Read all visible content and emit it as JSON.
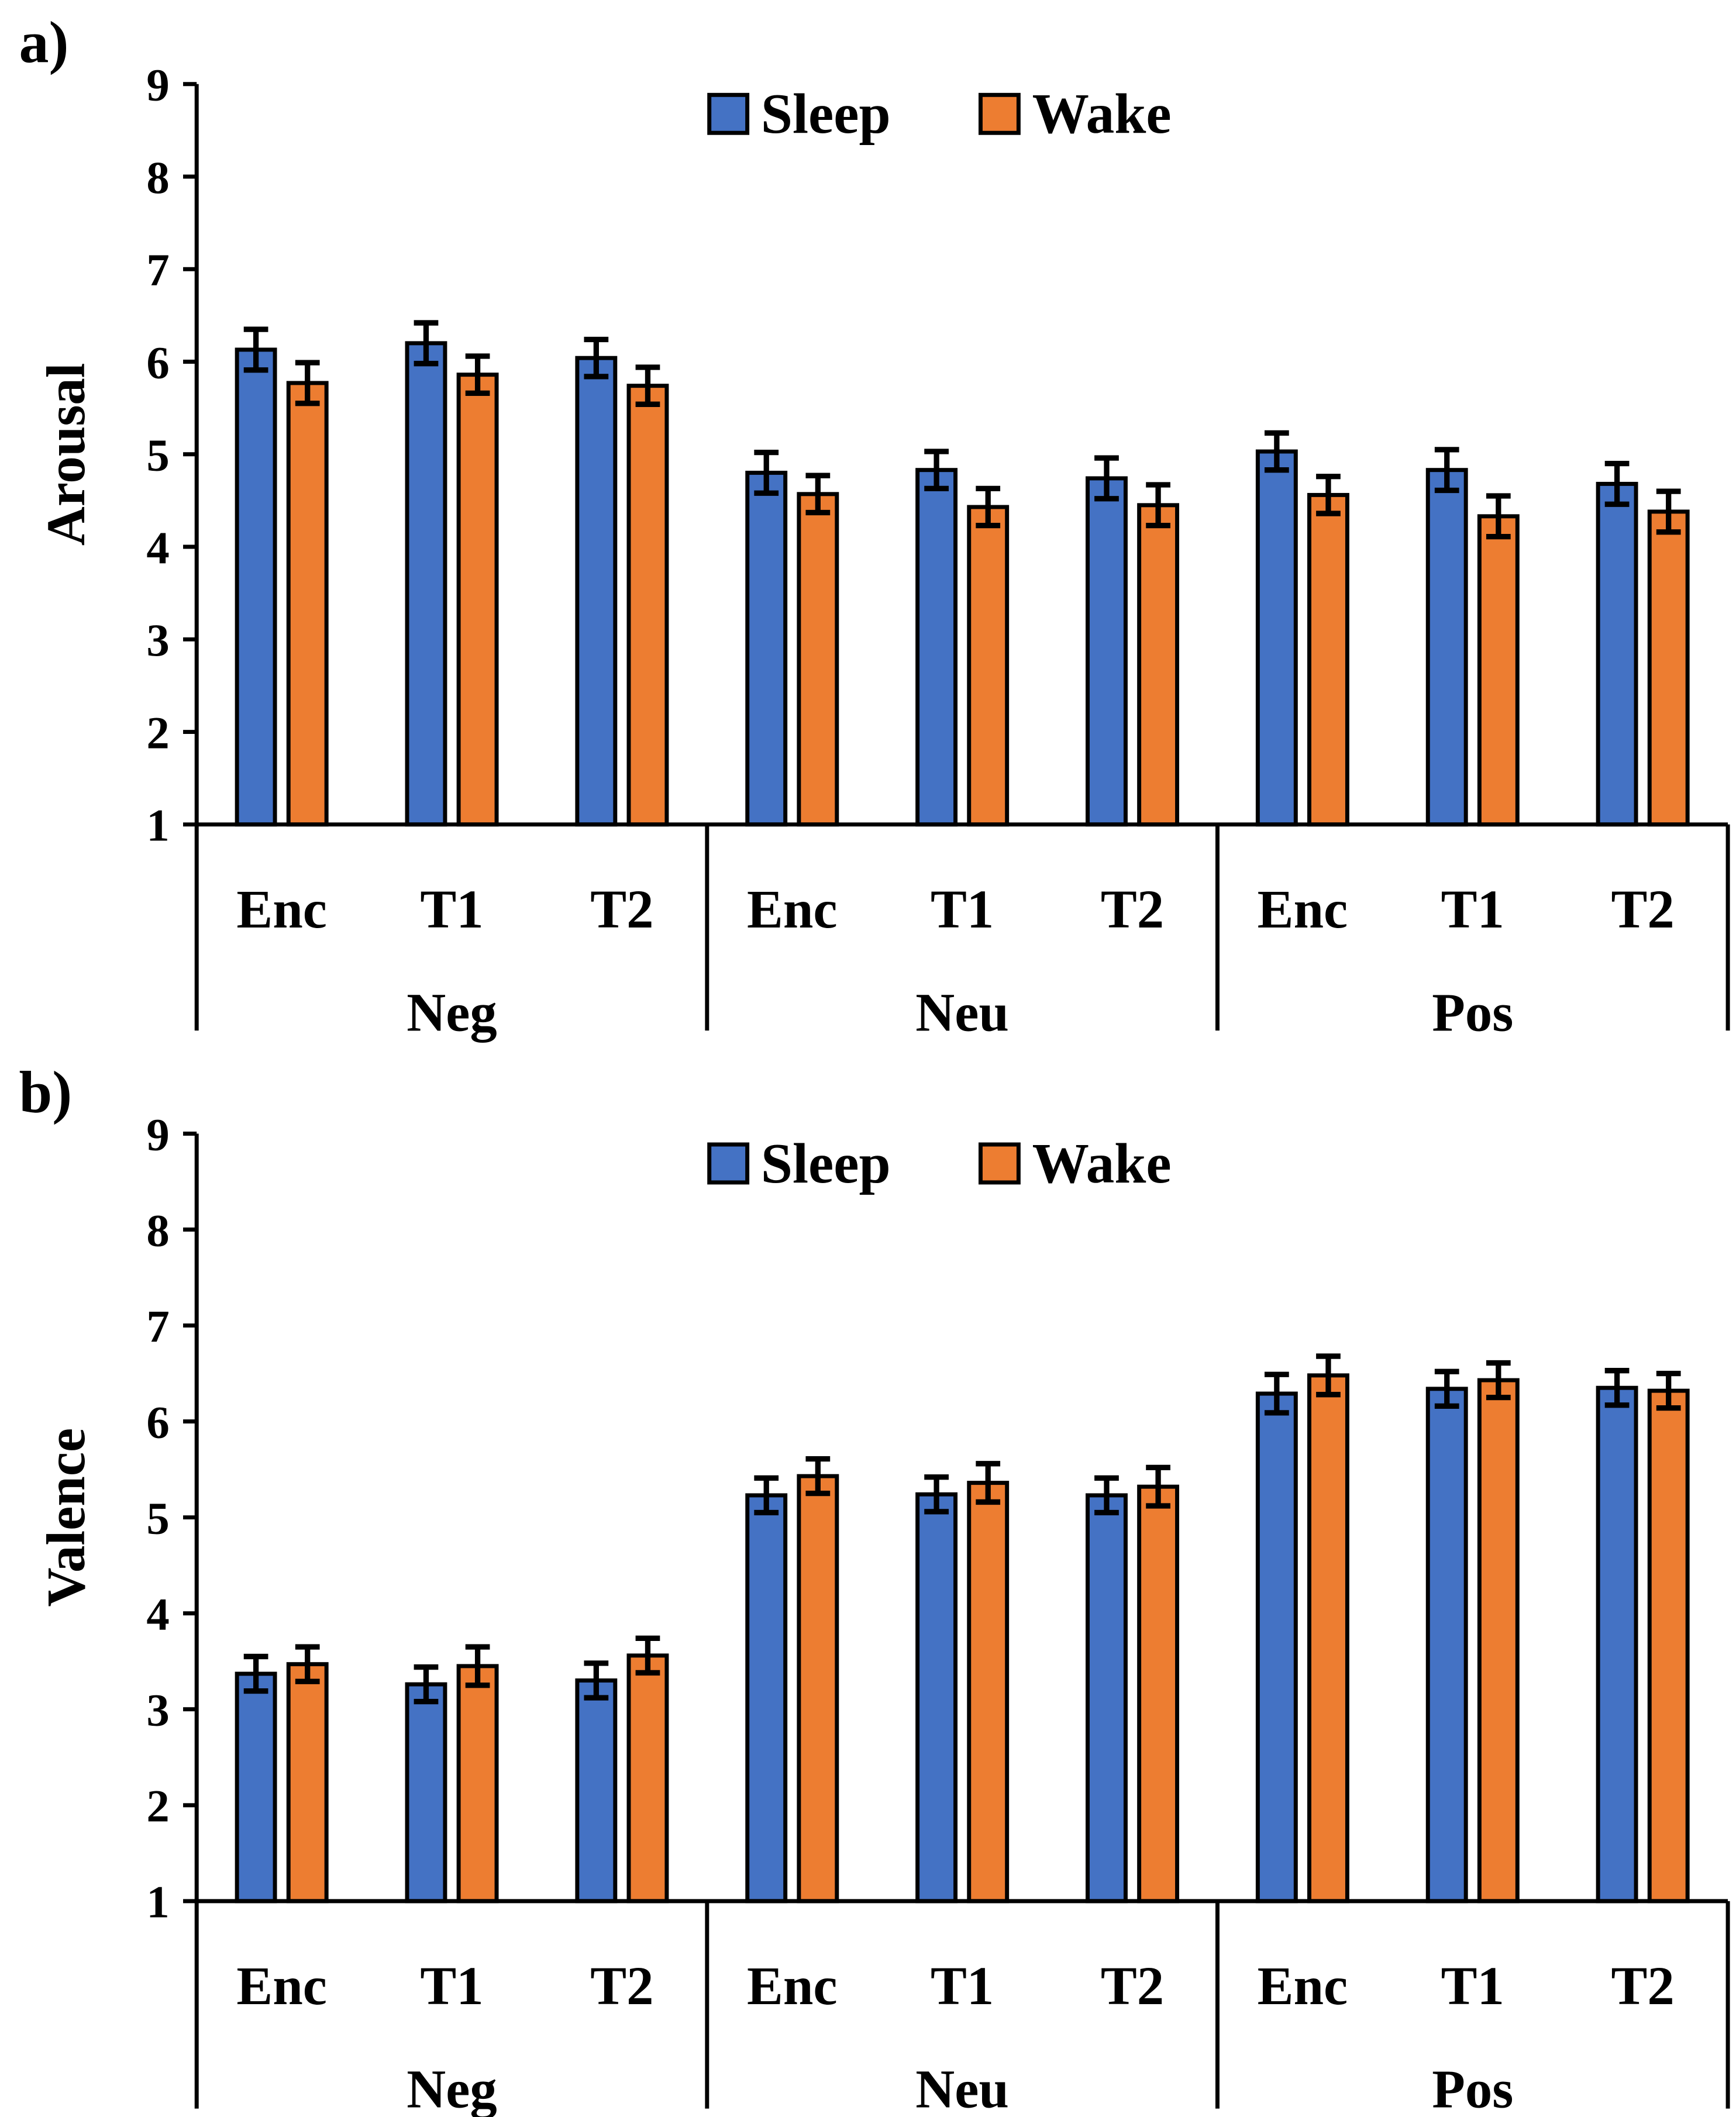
{
  "chart_data": [
    {
      "type": "bar",
      "panel_label": "a)",
      "ylabel": "Arousal",
      "ylim": [
        1,
        9
      ],
      "yticks": [
        "1",
        "2",
        "3",
        "4",
        "5",
        "6",
        "7",
        "8",
        "9"
      ],
      "groups": [
        "Neg",
        "Neu",
        "Pos"
      ],
      "categories": [
        "Enc",
        "T1",
        "T2",
        "Enc",
        "T1",
        "T2",
        "Enc",
        "T1",
        "T2"
      ],
      "legend_position": "top-center",
      "series": [
        {
          "name": "Sleep",
          "color": "#4472C4",
          "values": [
            6.13,
            6.2,
            6.04,
            4.8,
            4.83,
            4.74,
            5.03,
            4.83,
            4.68
          ],
          "errors": [
            0.22,
            0.22,
            0.2,
            0.22,
            0.2,
            0.22,
            0.2,
            0.22,
            0.22
          ]
        },
        {
          "name": "Wake",
          "color": "#ED7D31",
          "values": [
            5.77,
            5.86,
            5.74,
            4.57,
            4.43,
            4.45,
            4.56,
            4.33,
            4.38
          ],
          "errors": [
            0.22,
            0.2,
            0.2,
            0.2,
            0.2,
            0.22,
            0.2,
            0.22,
            0.22
          ]
        }
      ]
    },
    {
      "type": "bar",
      "panel_label": "b)",
      "ylabel": "Valence",
      "ylim": [
        1,
        9
      ],
      "yticks": [
        "1",
        "2",
        "3",
        "4",
        "5",
        "6",
        "7",
        "8",
        "9"
      ],
      "groups": [
        "Neg",
        "Neu",
        "Pos"
      ],
      "categories": [
        "Enc",
        "T1",
        "T2",
        "Enc",
        "T1",
        "T2",
        "Enc",
        "T1",
        "T2"
      ],
      "legend_position": "top-center",
      "series": [
        {
          "name": "Sleep",
          "color": "#4472C4",
          "values": [
            3.37,
            3.26,
            3.3,
            5.23,
            5.24,
            5.23,
            6.29,
            6.34,
            6.35
          ],
          "errors": [
            0.18,
            0.18,
            0.18,
            0.18,
            0.18,
            0.18,
            0.2,
            0.18,
            0.18
          ]
        },
        {
          "name": "Wake",
          "color": "#ED7D31",
          "values": [
            3.47,
            3.45,
            3.56,
            5.43,
            5.36,
            5.32,
            6.48,
            6.43,
            6.32
          ],
          "errors": [
            0.18,
            0.2,
            0.18,
            0.18,
            0.2,
            0.2,
            0.2,
            0.18,
            0.18
          ]
        }
      ]
    }
  ]
}
